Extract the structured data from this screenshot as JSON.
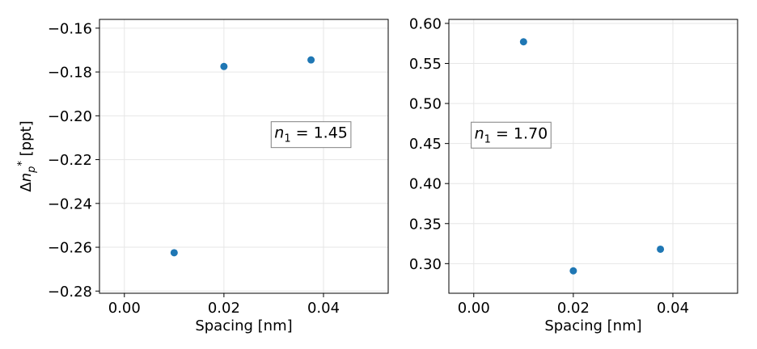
{
  "chart_data": [
    {
      "type": "scatter",
      "title": "",
      "xlabel": "Spacing [nm]",
      "ylabel": "Δn_p* [ppt]",
      "xlim": [
        -0.005,
        0.053
      ],
      "ylim": [
        -0.281,
        -0.156
      ],
      "xticks": [
        0.0,
        0.02,
        0.04
      ],
      "xtick_labels": [
        "0.00",
        "0.02",
        "0.04"
      ],
      "yticks": [
        -0.28,
        -0.26,
        -0.24,
        -0.22,
        -0.2,
        -0.18,
        -0.16
      ],
      "ytick_labels": [
        "−0.28",
        "−0.26",
        "−0.24",
        "−0.22",
        "−0.20",
        "−0.18",
        "−0.16"
      ],
      "grid": true,
      "color": "#1f77b4",
      "points": [
        {
          "x": 0.01,
          "y": -0.2625
        },
        {
          "x": 0.02,
          "y": -0.1775
        },
        {
          "x": 0.0375,
          "y": -0.1745
        }
      ],
      "annotation": {
        "var": "n",
        "sub": "1",
        "rest": " = 1.45",
        "x": 0.0375,
        "y": -0.2075
      }
    },
    {
      "type": "scatter",
      "title": "",
      "xlabel": "Spacing [nm]",
      "ylabel": "",
      "xlim": [
        -0.005,
        0.053
      ],
      "ylim": [
        0.263,
        0.605
      ],
      "xticks": [
        0.0,
        0.02,
        0.04
      ],
      "xtick_labels": [
        "0.00",
        "0.02",
        "0.04"
      ],
      "yticks": [
        0.3,
        0.35,
        0.4,
        0.45,
        0.5,
        0.55,
        0.6
      ],
      "ytick_labels": [
        "0.30",
        "0.35",
        "0.40",
        "0.45",
        "0.50",
        "0.55",
        "0.60"
      ],
      "grid": true,
      "color": "#1f77b4",
      "points": [
        {
          "x": 0.01,
          "y": 0.577
        },
        {
          "x": 0.02,
          "y": 0.291
        },
        {
          "x": 0.0375,
          "y": 0.318
        }
      ],
      "annotation": {
        "var": "n",
        "sub": "1",
        "rest": " = 1.70",
        "x": 0.0075,
        "y": 0.4635
      }
    }
  ]
}
